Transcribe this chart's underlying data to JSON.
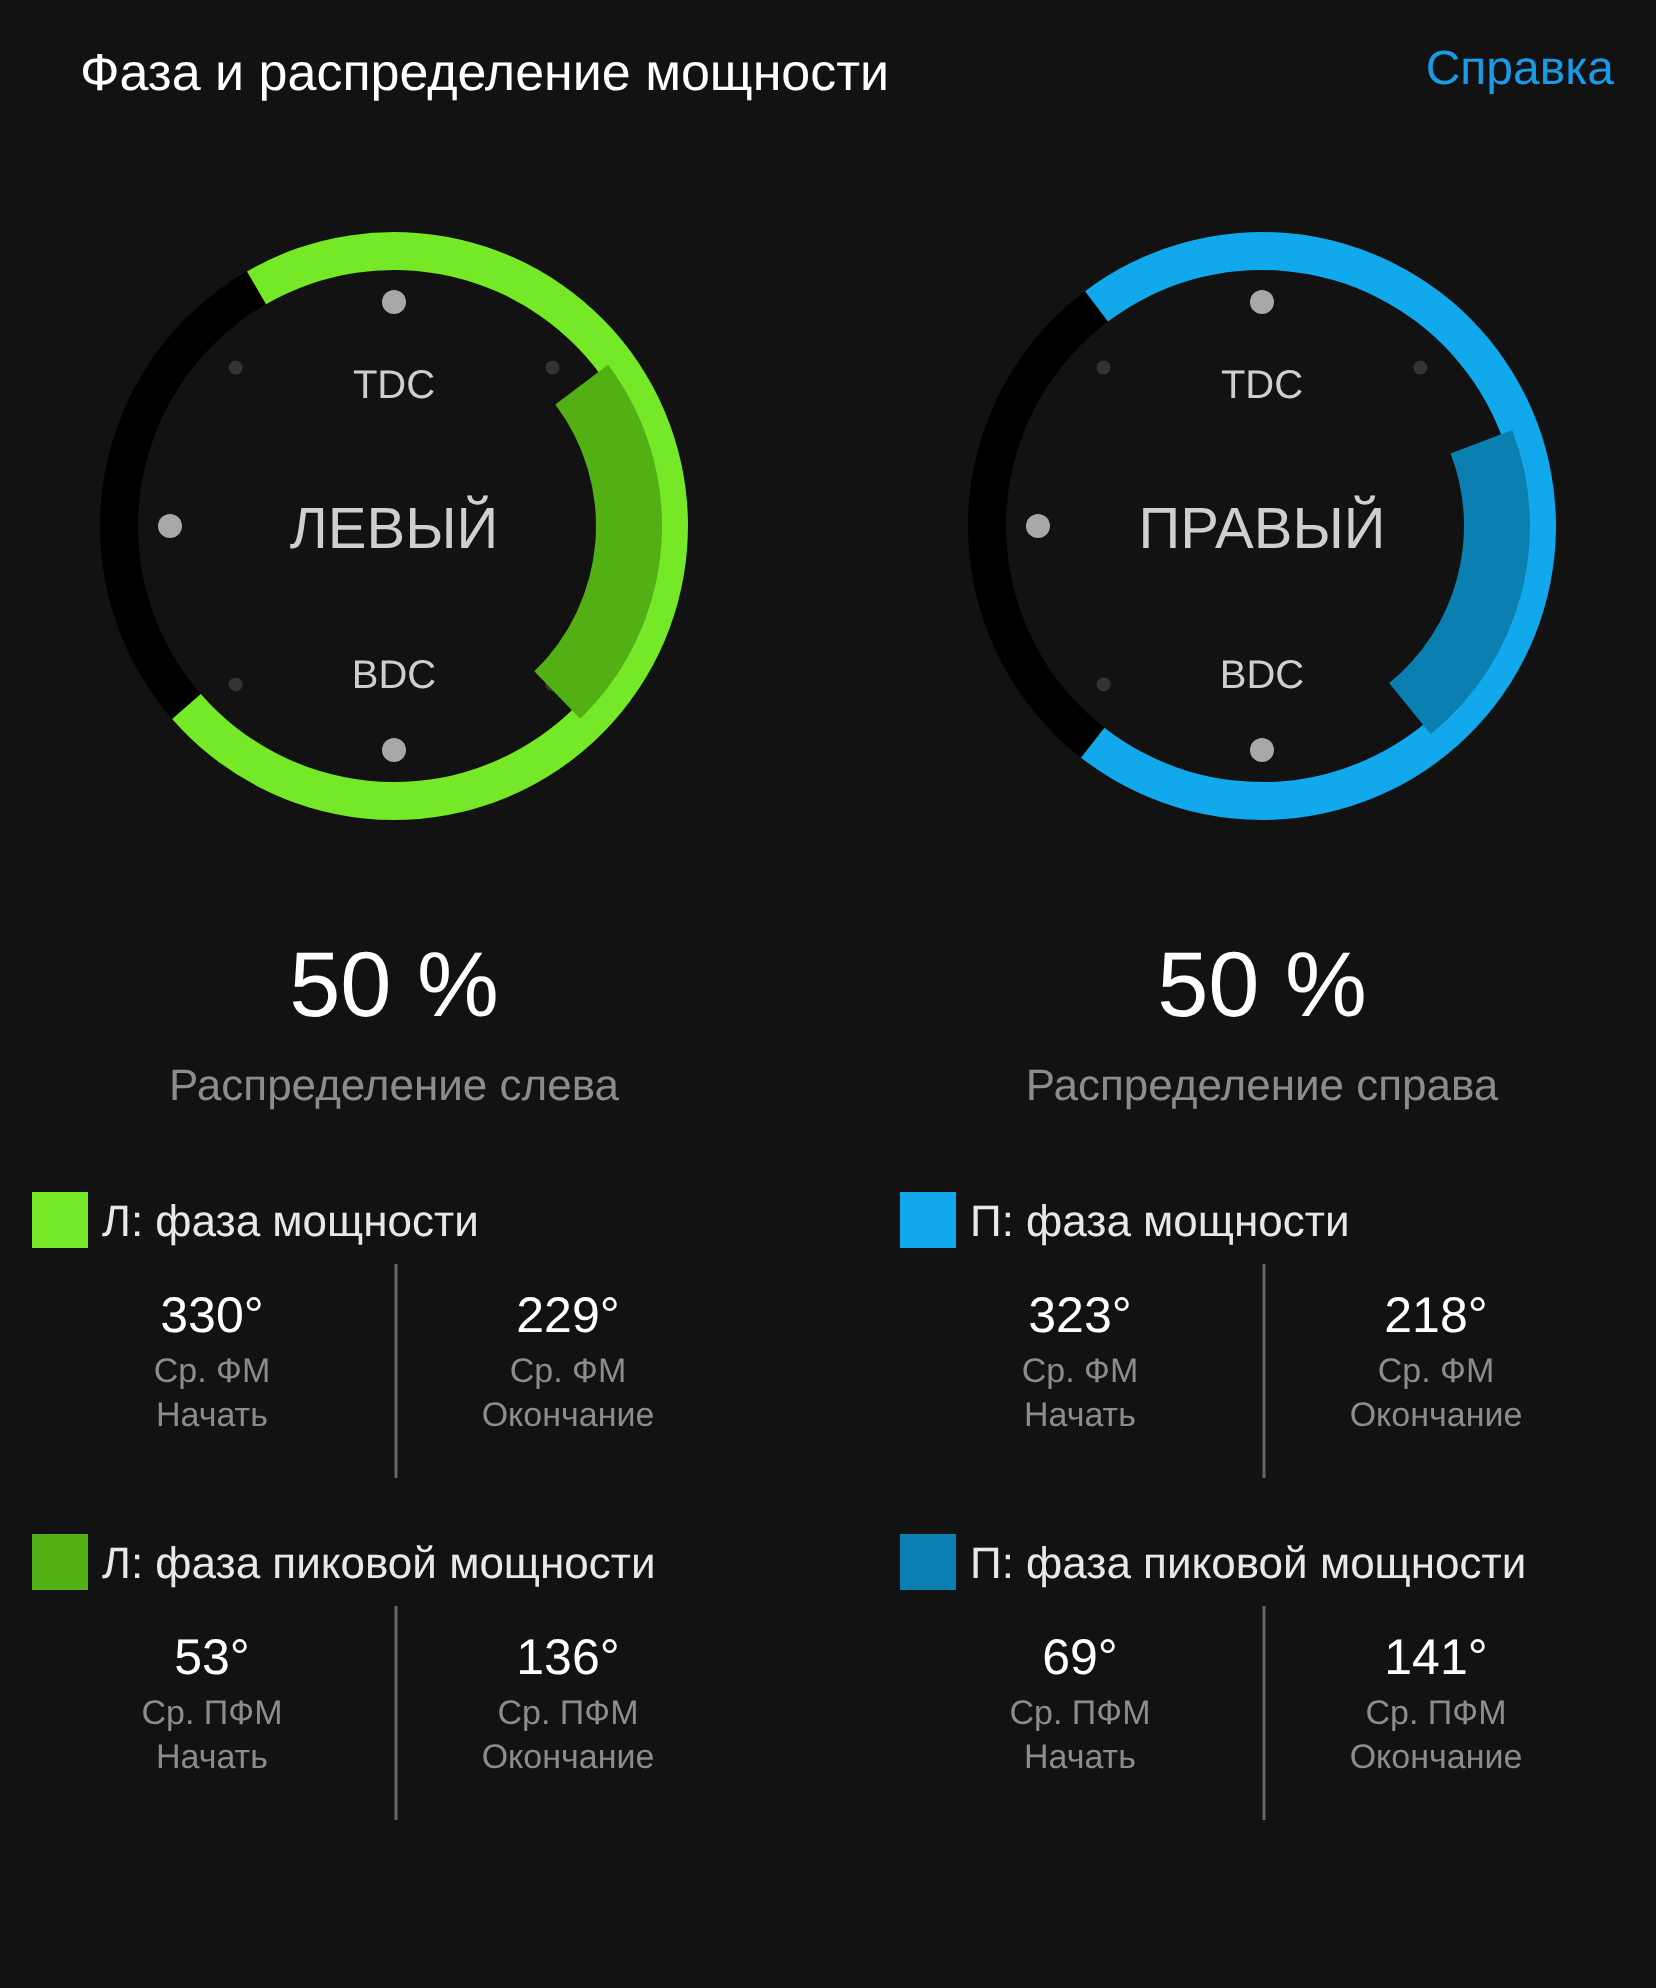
{
  "chart_data": [
    {
      "type": "other",
      "title": "Фаза и распределение мощности",
      "subtitle": "ЛЕВЫЙ",
      "xlabel": "Распределение слева",
      "categories": [
        "Начать",
        "Окончание"
      ],
      "series": [
        {
          "name": "Л: фаза мощности",
          "color": "#75e827",
          "values": [
            330,
            229
          ],
          "value_labels": [
            "330°",
            "229°"
          ]
        },
        {
          "name": "Л: фаза пиковой мощности",
          "color": "#52b015",
          "values": [
            53,
            136
          ],
          "value_labels": [
            "53°",
            "136°"
          ]
        }
      ],
      "annotations": [
        "50 %",
        "TDC",
        "BDC",
        "Ср. ФМ",
        "Ср. ПФМ",
        "Справка"
      ]
    },
    {
      "type": "other",
      "subtitle": "ПРАВЫЙ",
      "xlabel": "Распределение справа",
      "categories": [
        "Начать",
        "Окончание"
      ],
      "series": [
        {
          "name": "П: фаза мощности",
          "color": "#12a8ec",
          "values": [
            323,
            218
          ],
          "value_labels": [
            "323°",
            "218°"
          ]
        },
        {
          "name": "П: фаза пиковой мощности",
          "color": "#0a7fb0",
          "values": [
            69,
            141
          ],
          "value_labels": [
            "69°",
            "141°"
          ]
        }
      ],
      "annotations": [
        "50 %",
        "TDC",
        "BDC",
        "Ср. ФМ",
        "Ср. ПФМ"
      ]
    }
  ]
}
